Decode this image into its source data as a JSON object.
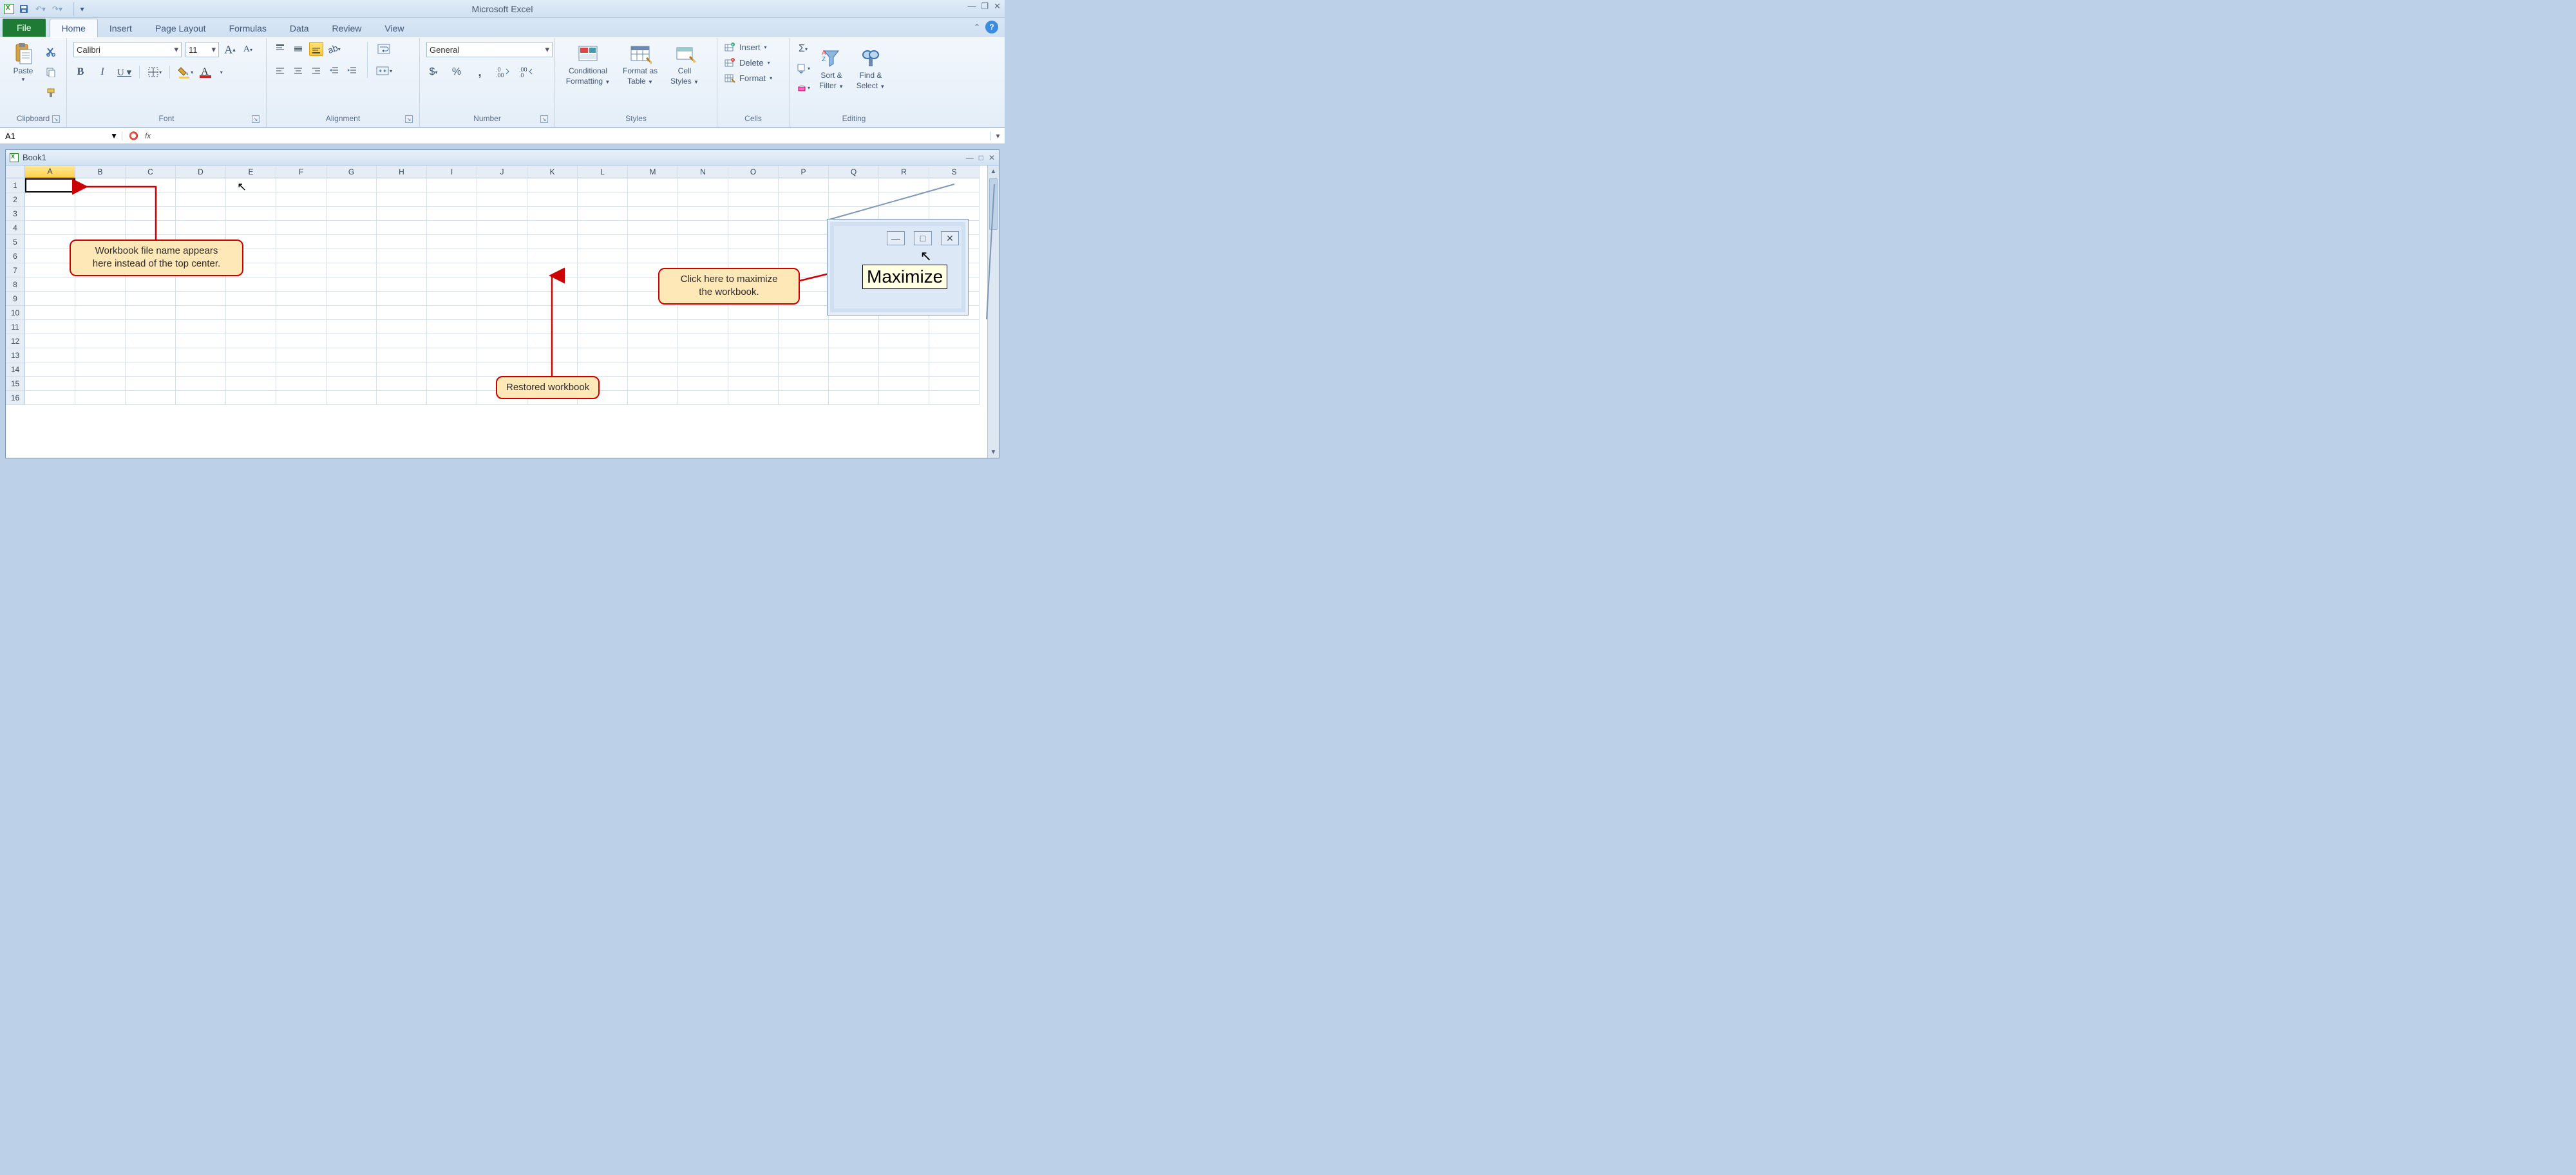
{
  "app": {
    "title": "Microsoft Excel"
  },
  "qat": {
    "save": "💾",
    "undo": "↶",
    "redo": "↷"
  },
  "tabs": {
    "file": "File",
    "items": [
      "Home",
      "Insert",
      "Page Layout",
      "Formulas",
      "Data",
      "Review",
      "View"
    ],
    "active": "Home"
  },
  "ribbon": {
    "clipboard": {
      "label": "Clipboard",
      "paste": "Paste"
    },
    "font": {
      "label": "Font",
      "name": "Calibri",
      "size": "11"
    },
    "alignment": {
      "label": "Alignment"
    },
    "number": {
      "label": "Number",
      "format": "General"
    },
    "styles": {
      "label": "Styles",
      "conditional": "Conditional Formatting",
      "conditional_l1": "Conditional",
      "conditional_l2": "Formatting",
      "table": "Format as Table",
      "table_l1": "Format as",
      "table_l2": "Table",
      "cell": "Cell Styles",
      "cell_l1": "Cell",
      "cell_l2": "Styles"
    },
    "cells": {
      "label": "Cells",
      "insert": "Insert",
      "delete": "Delete",
      "format": "Format"
    },
    "editing": {
      "label": "Editing",
      "sort": "Sort & Filter",
      "sort_l1": "Sort &",
      "sort_l2": "Filter",
      "find": "Find & Select",
      "find_l1": "Find &",
      "find_l2": "Select"
    }
  },
  "namebox": {
    "value": "A1"
  },
  "workbook": {
    "title": "Book1",
    "columns": [
      "A",
      "B",
      "C",
      "D",
      "E",
      "F",
      "G",
      "H",
      "I",
      "J",
      "K",
      "L",
      "M",
      "N",
      "O",
      "P",
      "Q",
      "R",
      "S"
    ],
    "rows": 16
  },
  "callouts": {
    "filename": "Workbook file name appears here instead of the top center.",
    "filename_l1": "Workbook file name appears",
    "filename_l2": "here instead of the top center.",
    "restored": "Restored workbook",
    "maximize": "Click here to maximize the workbook.",
    "maximize_l1": "Click here to maximize",
    "maximize_l2": "the workbook."
  },
  "inset": {
    "tooltip": "Maximize"
  },
  "colors": {
    "accent_green": "#1e7a34",
    "callout_bg": "#ffe8b8",
    "callout_border": "#cc0000",
    "ribbon_top": "#f2f7fc",
    "ribbon_bot": "#e4eef8"
  }
}
